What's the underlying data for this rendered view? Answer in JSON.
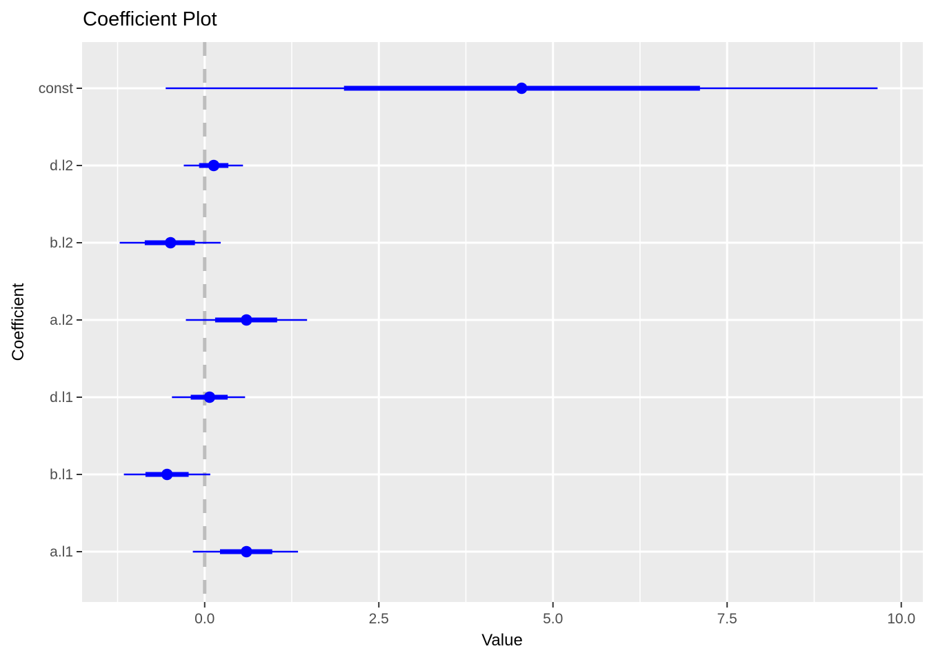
{
  "chart_data": {
    "type": "scatter",
    "style": "coefficient-pointrange-with-inner-and-outer-intervals",
    "title": "Coefficient Plot",
    "xlabel": "Value",
    "ylabel": "Coefficient",
    "xlim": [
      -1.76,
      10.31
    ],
    "x_ticks": [
      0,
      2.5,
      5,
      7.5,
      10
    ],
    "x_tick_labels": [
      "0.0",
      "2.5",
      "5.0",
      "7.5",
      "10.0"
    ],
    "grid": true,
    "legend_position": "none",
    "reference_line": {
      "x": 0,
      "line_style": "dashed"
    },
    "categories_top_to_bottom": [
      "const",
      "d.l2",
      "b.l2",
      "a.l2",
      "d.l1",
      "b.l1",
      "a.l1"
    ],
    "series": [
      {
        "coefficient": "const",
        "estimate": 4.55,
        "inner_interval": [
          2.0,
          7.11
        ],
        "outer_interval": [
          -0.56,
          9.66
        ]
      },
      {
        "coefficient": "d.l2",
        "estimate": 0.13,
        "inner_interval": [
          -0.08,
          0.34
        ],
        "outer_interval": [
          -0.3,
          0.55
        ]
      },
      {
        "coefficient": "b.l2",
        "estimate": -0.49,
        "inner_interval": [
          -0.86,
          -0.14
        ],
        "outer_interval": [
          -1.22,
          0.23
        ]
      },
      {
        "coefficient": "a.l2",
        "estimate": 0.6,
        "inner_interval": [
          0.15,
          1.04
        ],
        "outer_interval": [
          -0.27,
          1.47
        ]
      },
      {
        "coefficient": "d.l1",
        "estimate": 0.07,
        "inner_interval": [
          -0.2,
          0.33
        ],
        "outer_interval": [
          -0.47,
          0.58
        ]
      },
      {
        "coefficient": "b.l1",
        "estimate": -0.54,
        "inner_interval": [
          -0.85,
          -0.23
        ],
        "outer_interval": [
          -1.16,
          0.08
        ]
      },
      {
        "coefficient": "a.l1",
        "estimate": 0.6,
        "inner_interval": [
          0.22,
          0.97
        ],
        "outer_interval": [
          -0.17,
          1.34
        ]
      }
    ]
  },
  "colors": {
    "point_and_interval": "#0000FF",
    "panel_background": "#EBEBEB",
    "gridline": "#FFFFFF",
    "reference_line": "#BDBDBD",
    "axis_tick_text": "#4D4D4D",
    "axis_tick_mark": "#333333",
    "title_text": "#000000"
  }
}
